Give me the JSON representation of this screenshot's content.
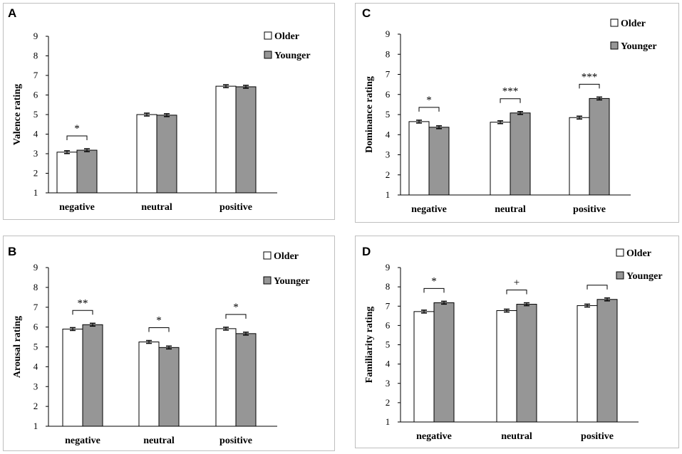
{
  "colors": {
    "older": "#ffffff",
    "younger": "#969696",
    "axis": "#000000"
  },
  "chart_data": [
    {
      "panel": "A",
      "type": "bar",
      "ylabel": "Valence rating",
      "ylim": [
        1,
        9
      ],
      "yticks": [
        "1",
        "2",
        "3",
        "4",
        "5",
        "6",
        "7",
        "8",
        "9"
      ],
      "categories": [
        "negative",
        "neutral",
        "positive"
      ],
      "series": [
        {
          "name": "Older",
          "values": [
            3.08,
            5.0,
            6.45
          ]
        },
        {
          "name": "Younger",
          "values": [
            3.18,
            4.97,
            6.42
          ]
        }
      ],
      "significance": [
        "*",
        "",
        ""
      ]
    },
    {
      "panel": "B",
      "type": "bar",
      "ylabel": "Arousal rating",
      "ylim": [
        1,
        9
      ],
      "yticks": [
        "1",
        "2",
        "3",
        "4",
        "5",
        "6",
        "7",
        "8",
        "9"
      ],
      "categories": [
        "negative",
        "neutral",
        "positive"
      ],
      "series": [
        {
          "name": "Older",
          "values": [
            5.9,
            5.25,
            5.92
          ]
        },
        {
          "name": "Younger",
          "values": [
            6.12,
            4.97,
            5.67
          ]
        }
      ],
      "significance": [
        "**",
        "*",
        "*"
      ]
    },
    {
      "panel": "C",
      "type": "bar",
      "ylabel": "Dominance rating",
      "ylim": [
        1,
        9
      ],
      "yticks": [
        "1",
        "2",
        "3",
        "4",
        "5",
        "6",
        "7",
        "8",
        "9"
      ],
      "categories": [
        "negative",
        "neutral",
        "positive"
      ],
      "series": [
        {
          "name": "Older",
          "values": [
            4.65,
            4.62,
            4.85
          ]
        },
        {
          "name": "Younger",
          "values": [
            4.37,
            5.08,
            5.8
          ]
        }
      ],
      "significance": [
        "*",
        "***",
        "***"
      ]
    },
    {
      "panel": "D",
      "type": "bar",
      "ylabel": "Familiarity rating",
      "ylim": [
        1,
        9
      ],
      "yticks": [
        "1",
        "2",
        "3",
        "4",
        "5",
        "6",
        "7",
        "8",
        "9"
      ],
      "categories": [
        "negative",
        "neutral",
        "positive"
      ],
      "series": [
        {
          "name": "Older",
          "values": [
            6.72,
            6.77,
            7.03
          ]
        },
        {
          "name": "Younger",
          "values": [
            7.18,
            7.1,
            7.35
          ]
        }
      ],
      "significance": [
        "*",
        "+",
        ""
      ]
    }
  ]
}
